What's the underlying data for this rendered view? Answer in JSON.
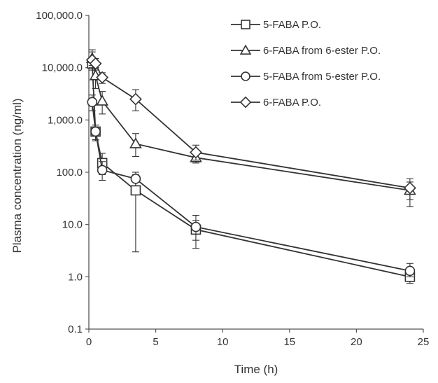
{
  "chart_data": {
    "type": "line",
    "title": "",
    "xlabel": "Time (h)",
    "ylabel": "Plasma concentration (ng/ml)",
    "xlim": [
      0,
      25
    ],
    "ylim": [
      0.1,
      100000
    ],
    "yscale": "log",
    "xticks": [
      0,
      5,
      10,
      15,
      20,
      25
    ],
    "yticks": [
      0.1,
      1.0,
      10.0,
      100.0,
      1000.0,
      10000.0,
      100000.0
    ],
    "xtick_labels": [
      "0",
      "5",
      "10",
      "15",
      "20",
      "25"
    ],
    "ytick_labels": [
      "0.1",
      "1.0",
      "10.0",
      "100.0",
      "1,000.0",
      "10,000.0",
      "100,000.0"
    ],
    "grid": false,
    "legend_position": "top-right",
    "series": [
      {
        "name": "5-FABA P.O.",
        "marker": "square",
        "points": [
          {
            "x": 0.25,
            "y": 12000,
            "lo": 9000,
            "hi": 16000
          },
          {
            "x": 0.5,
            "y": 600,
            "lo": 420,
            "hi": 800
          },
          {
            "x": 1,
            "y": 150,
            "lo": 90,
            "hi": 230
          },
          {
            "x": 3.5,
            "y": 45,
            "lo": 3,
            "hi": 90
          },
          {
            "x": 8,
            "y": 8,
            "lo": 5,
            "hi": 12
          },
          {
            "x": 24,
            "y": 1.0,
            "lo": 0.75,
            "hi": 1.3
          }
        ]
      },
      {
        "name": "6-FABA from 6-ester P.O.",
        "marker": "triangle",
        "points": [
          {
            "x": 0.25,
            "y": 15000,
            "lo": 10000,
            "hi": 22000
          },
          {
            "x": 0.5,
            "y": 7000,
            "lo": 4000,
            "hi": 10000
          },
          {
            "x": 1,
            "y": 2300,
            "lo": 1300,
            "hi": 3500
          },
          {
            "x": 3.5,
            "y": 350,
            "lo": 200,
            "hi": 550
          },
          {
            "x": 8,
            "y": 190,
            "lo": 150,
            "hi": 260
          },
          {
            "x": 24,
            "y": 45,
            "lo": 30,
            "hi": 65
          }
        ]
      },
      {
        "name": "5-FABA from 5-ester P.O.",
        "marker": "circle",
        "points": [
          {
            "x": 0.25,
            "y": 2200,
            "lo": 1500,
            "hi": 3000
          },
          {
            "x": 0.5,
            "y": 600,
            "lo": 400,
            "hi": 800
          },
          {
            "x": 1,
            "y": 110,
            "lo": 70,
            "hi": 160
          },
          {
            "x": 3.5,
            "y": 75,
            "lo": 55,
            "hi": 100
          },
          {
            "x": 8,
            "y": 9,
            "lo": 3.5,
            "hi": 15
          },
          {
            "x": 24,
            "y": 1.3,
            "lo": 1.0,
            "hi": 1.8
          }
        ]
      },
      {
        "name": "6-FABA P.O.",
        "marker": "diamond",
        "points": [
          {
            "x": 0.25,
            "y": 14000,
            "lo": 11000,
            "hi": 20000
          },
          {
            "x": 0.5,
            "y": 12000,
            "lo": 9000,
            "hi": 15000
          },
          {
            "x": 1,
            "y": 6500,
            "lo": 5000,
            "hi": 8000
          },
          {
            "x": 3.5,
            "y": 2500,
            "lo": 1500,
            "hi": 3800
          },
          {
            "x": 8,
            "y": 240,
            "lo": 170,
            "hi": 330
          },
          {
            "x": 24,
            "y": 50,
            "lo": 22,
            "hi": 75
          }
        ]
      }
    ]
  },
  "colors": {
    "line": "#333333",
    "axis": "#555555",
    "marker_fill": "#ffffff",
    "text": "#333333"
  }
}
